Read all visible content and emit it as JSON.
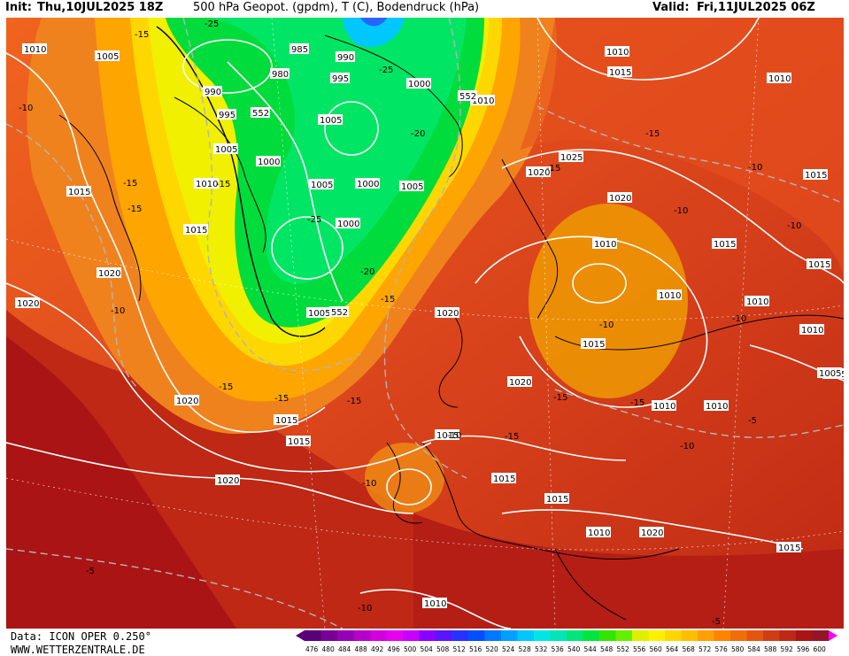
{
  "header": {
    "init_label": "Init:",
    "init_value": "Thu,10JUL2025 18Z",
    "title": "500 hPa Geopot. (gpdm), T (C), Bodendruck (hPa)",
    "valid_label": "Valid:",
    "valid_value": "Fri,11JUL2025 06Z"
  },
  "footer": {
    "data_line": "Data: ICON OPER 0.250°",
    "site": "WWW.WETTERZENTRALE.DE"
  },
  "map": {
    "pressure_labels": [
      {
        "t": "1010"
      },
      {
        "t": "1005"
      },
      {
        "t": "990"
      },
      {
        "t": "995"
      },
      {
        "t": "1005"
      },
      {
        "t": "1000"
      },
      {
        "t": "1010"
      },
      {
        "t": "1015"
      },
      {
        "t": "1015"
      },
      {
        "t": "1020"
      },
      {
        "t": "1020"
      },
      {
        "t": "1020"
      },
      {
        "t": "985"
      },
      {
        "t": "980"
      },
      {
        "t": "990"
      },
      {
        "t": "995"
      },
      {
        "t": "1000"
      },
      {
        "t": "1005"
      },
      {
        "t": "1005"
      },
      {
        "t": "1000"
      },
      {
        "t": "1005"
      },
      {
        "t": "1000"
      },
      {
        "t": "1005"
      },
      {
        "t": "1010"
      },
      {
        "t": "1010"
      },
      {
        "t": "1015"
      },
      {
        "t": "1010"
      },
      {
        "t": "1015"
      },
      {
        "t": "1020"
      },
      {
        "t": "1025"
      },
      {
        "t": "1020"
      },
      {
        "t": "1010"
      },
      {
        "t": "1015"
      },
      {
        "t": "1010"
      },
      {
        "t": "1015"
      },
      {
        "t": "1010"
      },
      {
        "t": "1015"
      },
      {
        "t": "1010"
      },
      {
        "t": "1015"
      },
      {
        "t": "1010"
      },
      {
        "t": "1010"
      },
      {
        "t": "1005"
      },
      {
        "t": "1020"
      },
      {
        "t": "1020"
      },
      {
        "t": "1015"
      },
      {
        "t": "1015"
      },
      {
        "t": "1015"
      },
      {
        "t": "1015"
      },
      {
        "t": "1015"
      },
      {
        "t": "1010"
      },
      {
        "t": "1020"
      },
      {
        "t": "1015"
      },
      {
        "t": "1020"
      },
      {
        "t": "1010"
      }
    ],
    "temp_labels": [
      {
        "t": "-15"
      },
      {
        "t": "-10"
      },
      {
        "t": "-15"
      },
      {
        "t": "-15"
      },
      {
        "t": "-15"
      },
      {
        "t": "-10"
      },
      {
        "t": "-15"
      },
      {
        "t": "-25"
      },
      {
        "t": "-20"
      },
      {
        "t": "-25"
      },
      {
        "t": "-20"
      },
      {
        "t": "-15"
      },
      {
        "t": "-15"
      },
      {
        "t": "-10"
      },
      {
        "t": "-10"
      },
      {
        "t": "-10"
      },
      {
        "t": "-10"
      },
      {
        "t": "-15"
      },
      {
        "t": "-15"
      },
      {
        "t": "-15"
      },
      {
        "t": "-10"
      },
      {
        "t": "-10"
      },
      {
        "t": "-10"
      },
      {
        "t": "-15"
      },
      {
        "t": "-15"
      },
      {
        "t": "-10"
      },
      {
        "t": "-5"
      },
      {
        "t": "-5"
      },
      {
        "t": "-10"
      },
      {
        "t": "-5"
      },
      {
        "t": "-25"
      },
      {
        "t": "-15"
      }
    ],
    "geopot_labels": [
      {
        "t": "552"
      },
      {
        "t": "552"
      },
      {
        "t": "552"
      }
    ]
  },
  "legend": {
    "ticks": [
      "476",
      "480",
      "484",
      "488",
      "492",
      "496",
      "500",
      "504",
      "508",
      "512",
      "516",
      "520",
      "524",
      "528",
      "532",
      "536",
      "540",
      "544",
      "548",
      "552",
      "556",
      "560",
      "564",
      "568",
      "572",
      "576",
      "580",
      "584",
      "588",
      "592",
      "596",
      "600"
    ],
    "colors": [
      "#5a0078",
      "#780096",
      "#9600b4",
      "#b400c8",
      "#d200dc",
      "#e600f0",
      "#c800ff",
      "#8c00ff",
      "#5a14ff",
      "#2832ff",
      "#0050ff",
      "#0078ff",
      "#00a0ff",
      "#00c8ff",
      "#00e6e6",
      "#00e6b4",
      "#00e678",
      "#00e63c",
      "#32e600",
      "#64f000",
      "#dcf000",
      "#fff000",
      "#ffd700",
      "#ffbe00",
      "#ffa000",
      "#ff8200",
      "#f06e0a",
      "#e6550f",
      "#d23c14",
      "#be2814",
      "#aa1414",
      "#961428"
    ]
  },
  "colors": {
    "contour_isobar": "#ffffff",
    "contour_temp": "#b4b4b4",
    "coastline": "#000000",
    "field_warm": "#d2321e",
    "field_cold": "#00e650"
  }
}
